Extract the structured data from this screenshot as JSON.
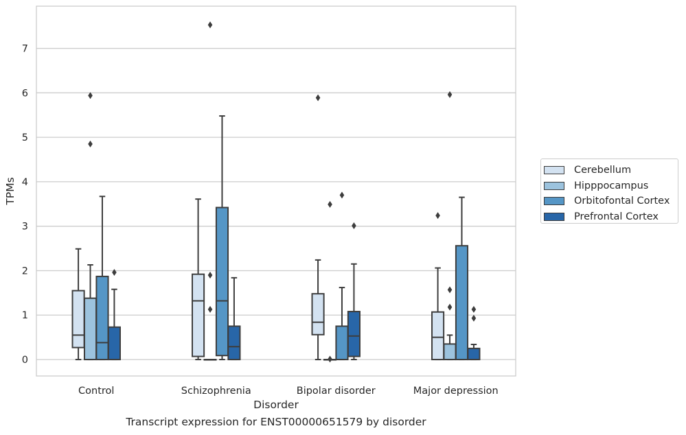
{
  "chart_data": {
    "type": "box",
    "xlabel": "Disorder",
    "ylabel": "TPMs",
    "caption": "Transcript expression for ENST00000651579 by disorder",
    "ylim": [
      -0.37,
      7.95
    ],
    "yticks": [
      "0",
      "1",
      "2",
      "3",
      "4",
      "5",
      "6",
      "7"
    ],
    "grid": "horizontal",
    "legend_position": "right",
    "categories": [
      "Control",
      "Schizophrenia",
      "Bipolar disorder",
      "Major depression"
    ],
    "series": [
      {
        "name": "Cerebellum",
        "color": "#d3e2f1",
        "boxes": [
          {
            "category": "Control",
            "whisker_low": 0,
            "q1": 0.27,
            "median": 0.55,
            "q3": 1.55,
            "whisker_high": 2.49,
            "outliers": []
          },
          {
            "category": "Schizophrenia",
            "whisker_low": 0,
            "q1": 0.07,
            "median": 1.32,
            "q3": 1.92,
            "whisker_high": 3.61,
            "outliers": []
          },
          {
            "category": "Bipolar disorder",
            "whisker_low": 0,
            "q1": 0.56,
            "median": 0.84,
            "q3": 1.48,
            "whisker_high": 2.24,
            "outliers": [
              5.89
            ]
          },
          {
            "category": "Major depression",
            "whisker_low": 0,
            "q1": 0,
            "median": 0.5,
            "q3": 1.07,
            "whisker_high": 2.06,
            "outliers": [
              3.24
            ]
          }
        ]
      },
      {
        "name": "Hipppocampus",
        "color": "#9cc3de",
        "boxes": [
          {
            "category": "Control",
            "whisker_low": 0,
            "q1": 0,
            "median": 0,
            "q3": 1.38,
            "whisker_high": 2.13,
            "outliers": [
              4.85,
              5.94
            ]
          },
          {
            "category": "Schizophrenia",
            "whisker_low": 0,
            "q1": 0,
            "median": 0,
            "q3": 0,
            "whisker_high": 0,
            "outliers": [
              1.13,
              1.9,
              7.53
            ]
          },
          {
            "category": "Bipolar disorder",
            "whisker_low": 0,
            "q1": 0,
            "median": 0,
            "q3": 0,
            "whisker_high": 0,
            "outliers": [
              0.01,
              3.49
            ]
          },
          {
            "category": "Major depression",
            "whisker_low": 0,
            "q1": 0,
            "median": 0,
            "q3": 0.35,
            "whisker_high": 0.55,
            "outliers": [
              1.18,
              1.57,
              5.96
            ]
          }
        ]
      },
      {
        "name": "Orbitofontal Cortex",
        "color": "#5596c6",
        "boxes": [
          {
            "category": "Control",
            "whisker_low": 0,
            "q1": 0,
            "median": 0.38,
            "q3": 1.87,
            "whisker_high": 3.67,
            "outliers": []
          },
          {
            "category": "Schizophrenia",
            "whisker_low": 0,
            "q1": 0.09,
            "median": 1.32,
            "q3": 3.42,
            "whisker_high": 5.48,
            "outliers": []
          },
          {
            "category": "Bipolar disorder",
            "whisker_low": 0,
            "q1": 0,
            "median": 0,
            "q3": 0.75,
            "whisker_high": 1.62,
            "outliers": [
              3.7
            ]
          },
          {
            "category": "Major depression",
            "whisker_low": 0,
            "q1": 0,
            "median": 0,
            "q3": 2.56,
            "whisker_high": 3.65,
            "outliers": []
          }
        ]
      },
      {
        "name": "Prefrontal Cortex",
        "color": "#2866a8",
        "boxes": [
          {
            "category": "Control",
            "whisker_low": 0,
            "q1": 0,
            "median": 0,
            "q3": 0.73,
            "whisker_high": 1.58,
            "outliers": [
              1.96
            ]
          },
          {
            "category": "Schizophrenia",
            "whisker_low": 0,
            "q1": 0,
            "median": 0.29,
            "q3": 0.75,
            "whisker_high": 1.84,
            "outliers": []
          },
          {
            "category": "Bipolar disorder",
            "whisker_low": 0,
            "q1": 0.07,
            "median": 0.53,
            "q3": 1.08,
            "whisker_high": 2.15,
            "outliers": [
              3.01
            ]
          },
          {
            "category": "Major depression",
            "whisker_low": 0,
            "q1": 0,
            "median": 0,
            "q3": 0.25,
            "whisker_high": 0.34,
            "outliers": [
              0.93,
              1.13
            ]
          }
        ]
      }
    ]
  }
}
